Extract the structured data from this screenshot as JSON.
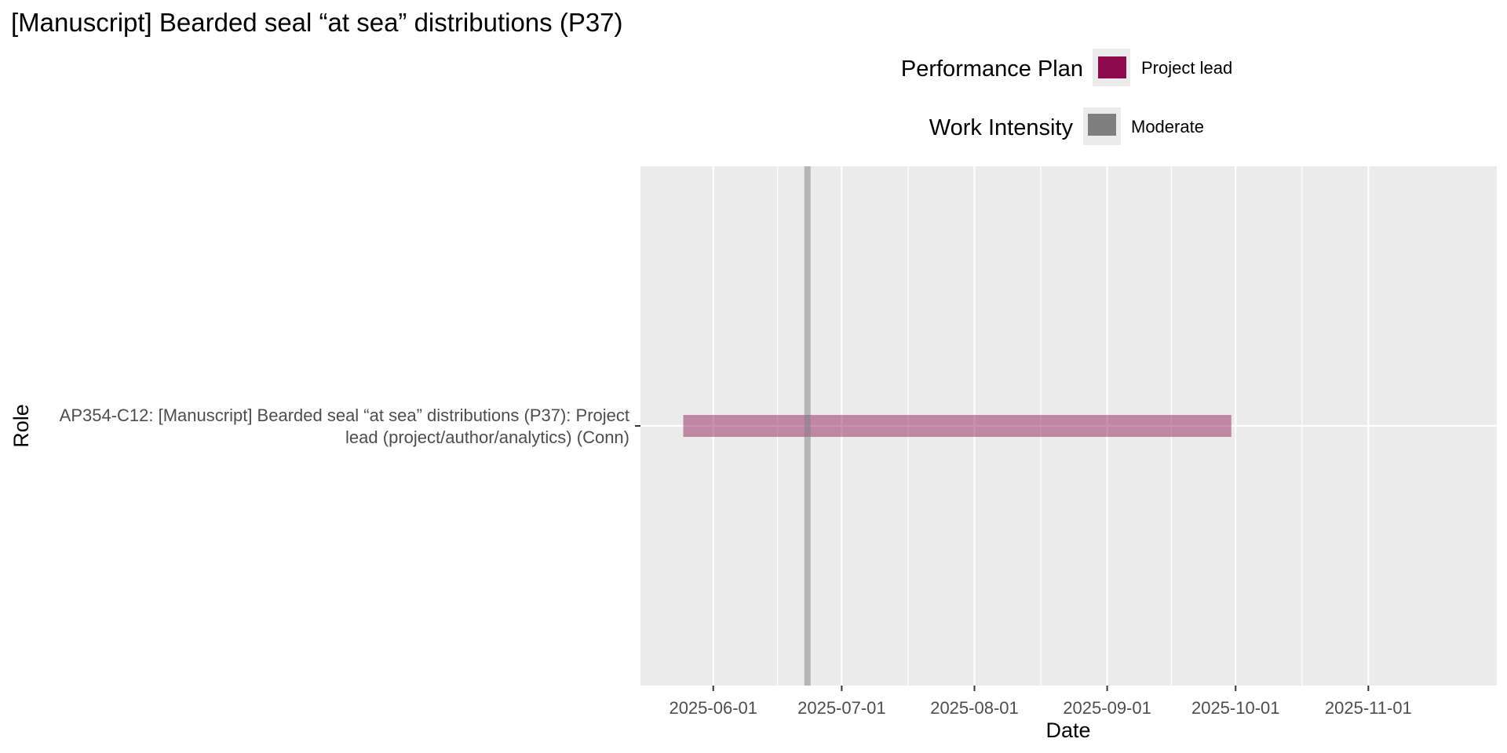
{
  "chart_data": {
    "type": "gantt",
    "title": "[Manuscript] Bearded seal “at sea” distributions (P37)",
    "xlabel": "Date",
    "ylabel": "Role",
    "xlim": [
      "2025-05-15",
      "2025-12-01"
    ],
    "x_ticks": [
      "2025-06-01",
      "2025-07-01",
      "2025-08-01",
      "2025-09-01",
      "2025-10-01",
      "2025-11-01"
    ],
    "grid": true,
    "legend_position": "top",
    "roles": [
      {
        "label_lines": [
          "AP354-C12: [Manuscript] Bearded seal “at sea” distributions (P37): Project",
          "lead (project/author/analytics) (Conn)"
        ]
      }
    ],
    "bars": [
      {
        "role_index": 0,
        "start": "2025-05-25",
        "end": "2025-09-30",
        "plan": "Project lead",
        "color": "#8B0A50"
      }
    ],
    "markers": [
      {
        "date": "2025-06-23",
        "intensity": "Moderate",
        "color": "#7f7f7f"
      }
    ],
    "legends": [
      {
        "title": "Performance Plan",
        "items": [
          {
            "label": "Project lead",
            "color": "#8B0A50"
          }
        ]
      },
      {
        "title": "Work Intensity",
        "items": [
          {
            "label": "Moderate",
            "color": "#7f7f7f"
          }
        ]
      }
    ],
    "colors": {
      "panel": "#EBEBEB",
      "gridline": "#FFFFFF"
    }
  }
}
